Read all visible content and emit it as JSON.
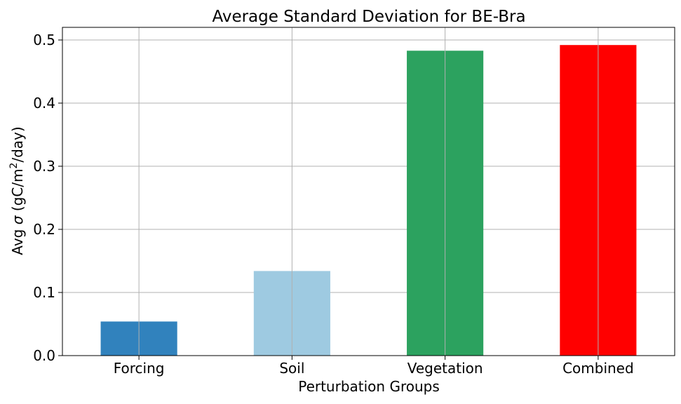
{
  "chart_data": {
    "type": "bar",
    "title": "Average Standard Deviation for BE-Bra",
    "xlabel": "Perturbation Groups",
    "ylabel": {
      "prefix": "Avg ",
      "sigma": "σ",
      "unit_start": " (gC/m",
      "superscript": "2",
      "unit_end": "/day)"
    },
    "categories": [
      "Forcing",
      "Soil",
      "Vegetation",
      "Combined"
    ],
    "values": [
      0.054,
      0.134,
      0.483,
      0.492
    ],
    "colors": [
      "#3182bd",
      "#9ecae1",
      "#2ca25f",
      "#ff0000"
    ],
    "ylim": [
      0,
      0.52
    ],
    "yticks": [
      0.0,
      0.1,
      0.2,
      0.3,
      0.4,
      0.5
    ],
    "ytick_labels": [
      "0.0",
      "0.1",
      "0.2",
      "0.3",
      "0.4",
      "0.5"
    ],
    "grid": true,
    "legend": "none"
  }
}
